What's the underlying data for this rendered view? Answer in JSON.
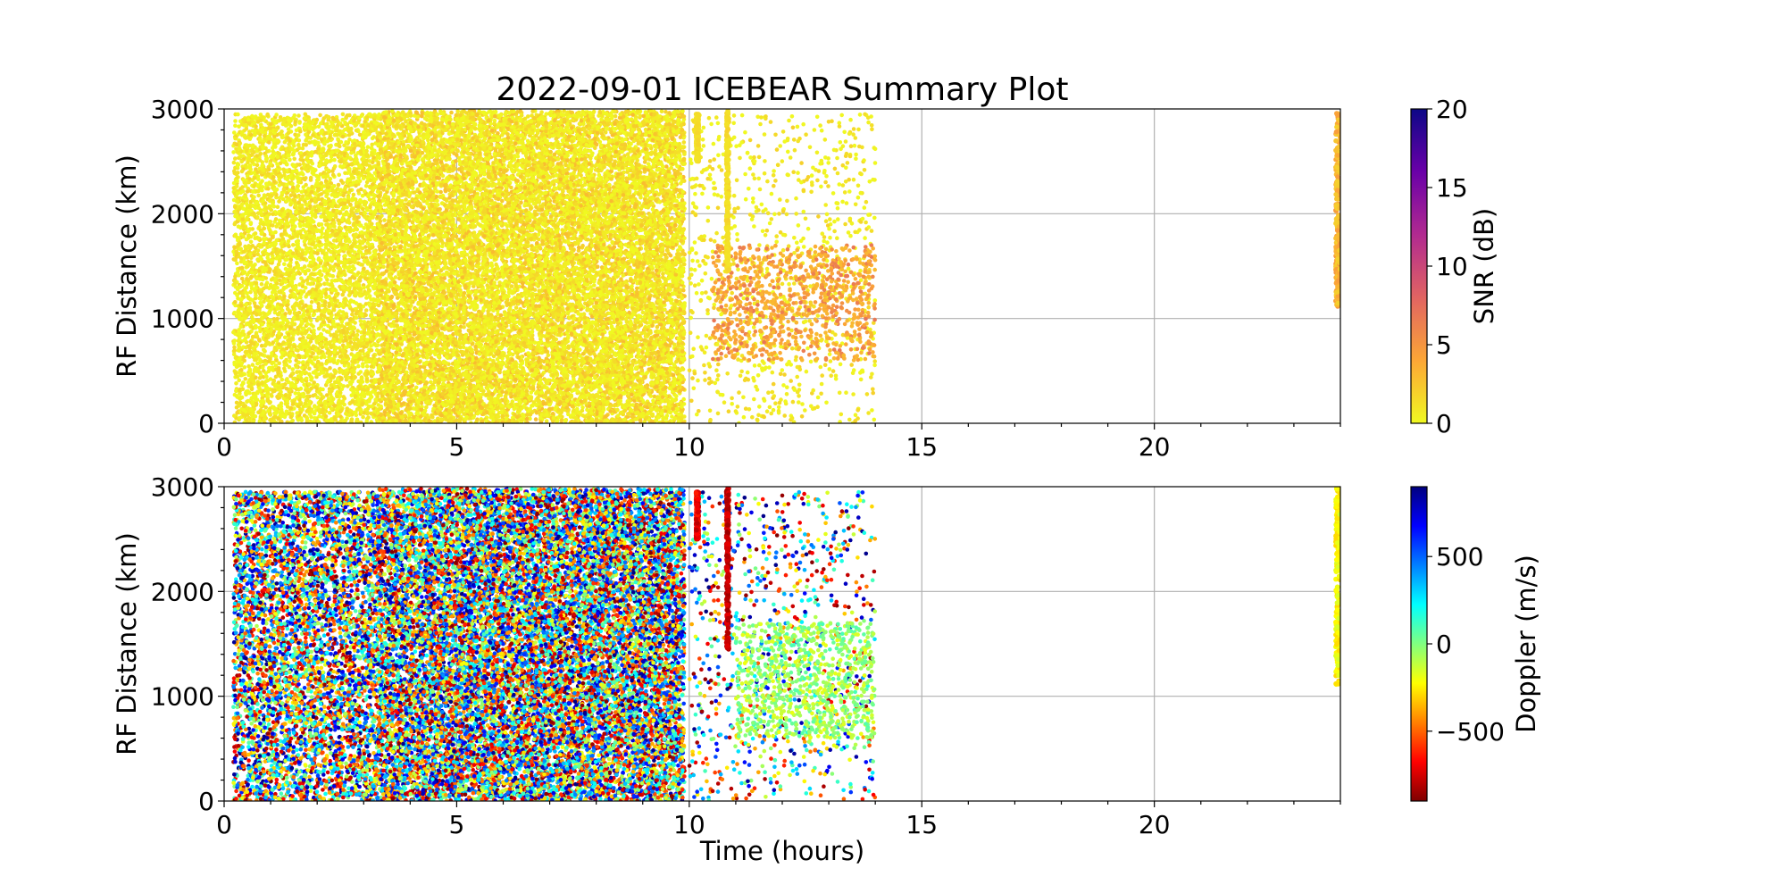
{
  "chart_data": [
    {
      "type": "scatter",
      "title": "2022-09-01 ICEBEAR Summary Plot",
      "xlabel": "",
      "ylabel": "RF Distance (km)",
      "xlim": [
        0,
        24
      ],
      "ylim": [
        0,
        3000
      ],
      "xticks": [
        0,
        5,
        10,
        15,
        20
      ],
      "yticks": [
        0,
        1000,
        2000,
        3000
      ],
      "grid": true,
      "color_by": "SNR",
      "colorbar": {
        "label": "SNR (dB)",
        "range": [
          0,
          20
        ],
        "ticks": [
          0,
          5,
          10,
          15,
          20
        ],
        "colormap": "plasma_r",
        "stops": [
          "#f0f921",
          "#fca636",
          "#e16462",
          "#b12a90",
          "#6a00a8",
          "#0d0887"
        ]
      },
      "series": [
        {
          "x_range": [
            0.2,
            3.3
          ],
          "y_range": [
            0,
            2950
          ],
          "density": "medium",
          "value_range": [
            0,
            2
          ]
        },
        {
          "x_range": [
            3.3,
            9.9
          ],
          "y_range": [
            0,
            2980
          ],
          "density": "dense",
          "value_range": [
            0,
            3
          ]
        },
        {
          "x_range": [
            10.0,
            14.0
          ],
          "y_range": [
            0,
            2950
          ],
          "density": "sparse",
          "value_range": [
            0,
            2
          ]
        },
        {
          "x_range": [
            10.5,
            14.0
          ],
          "y_range": [
            600,
            1700
          ],
          "density": "sparse",
          "value_range": [
            3,
            7
          ]
        },
        {
          "x_range": [
            10.15,
            10.2
          ],
          "y_range": [
            2500,
            2950
          ],
          "density": "streak",
          "value_range": [
            1,
            2
          ]
        },
        {
          "x_range": [
            10.8,
            10.85
          ],
          "y_range": [
            1450,
            2990
          ],
          "density": "streak",
          "value_range": [
            1,
            2
          ]
        },
        {
          "x_range": [
            23.9,
            24.0
          ],
          "y_range": [
            1100,
            2990
          ],
          "density": "streak",
          "value_range": [
            2,
            5
          ]
        }
      ]
    },
    {
      "type": "scatter",
      "title": "",
      "xlabel": "Time (hours)",
      "ylabel": "RF Distance (km)",
      "xlim": [
        0,
        24
      ],
      "ylim": [
        0,
        3000
      ],
      "xticks": [
        0,
        5,
        10,
        15,
        20
      ],
      "yticks": [
        0,
        1000,
        2000,
        3000
      ],
      "grid": true,
      "color_by": "Doppler",
      "colorbar": {
        "label": "Doppler (m/s)",
        "range": [
          -900,
          900
        ],
        "ticks": [
          -500,
          0,
          500
        ],
        "colormap": "jet_r",
        "stops": [
          "#7f0000",
          "#ff0000",
          "#ff8000",
          "#ffff00",
          "#80ff80",
          "#00ffff",
          "#0080ff",
          "#0000ff",
          "#00007f"
        ]
      },
      "series": [
        {
          "x_range": [
            0.2,
            3.3
          ],
          "y_range": [
            0,
            2950
          ],
          "density": "medium",
          "value_range": [
            -900,
            900
          ]
        },
        {
          "x_range": [
            3.3,
            9.9
          ],
          "y_range": [
            0,
            2980
          ],
          "density": "dense",
          "value_range": [
            -900,
            900
          ]
        },
        {
          "x_range": [
            10.0,
            14.0
          ],
          "y_range": [
            0,
            2950
          ],
          "density": "sparse",
          "value_range": [
            -900,
            900
          ]
        },
        {
          "x_range": [
            11.0,
            14.0
          ],
          "y_range": [
            600,
            1700
          ],
          "density": "sparse",
          "value_range": [
            -200,
            100
          ]
        },
        {
          "x_range": [
            10.15,
            10.2
          ],
          "y_range": [
            2500,
            2950
          ],
          "density": "streak",
          "value_range": [
            -800,
            -600
          ]
        },
        {
          "x_range": [
            10.8,
            10.85
          ],
          "y_range": [
            1450,
            2990
          ],
          "density": "streak",
          "value_range": [
            -850,
            -700
          ]
        },
        {
          "x_range": [
            23.9,
            24.0
          ],
          "y_range": [
            1100,
            2990
          ],
          "density": "streak",
          "value_range": [
            -300,
            -150
          ]
        }
      ]
    }
  ]
}
